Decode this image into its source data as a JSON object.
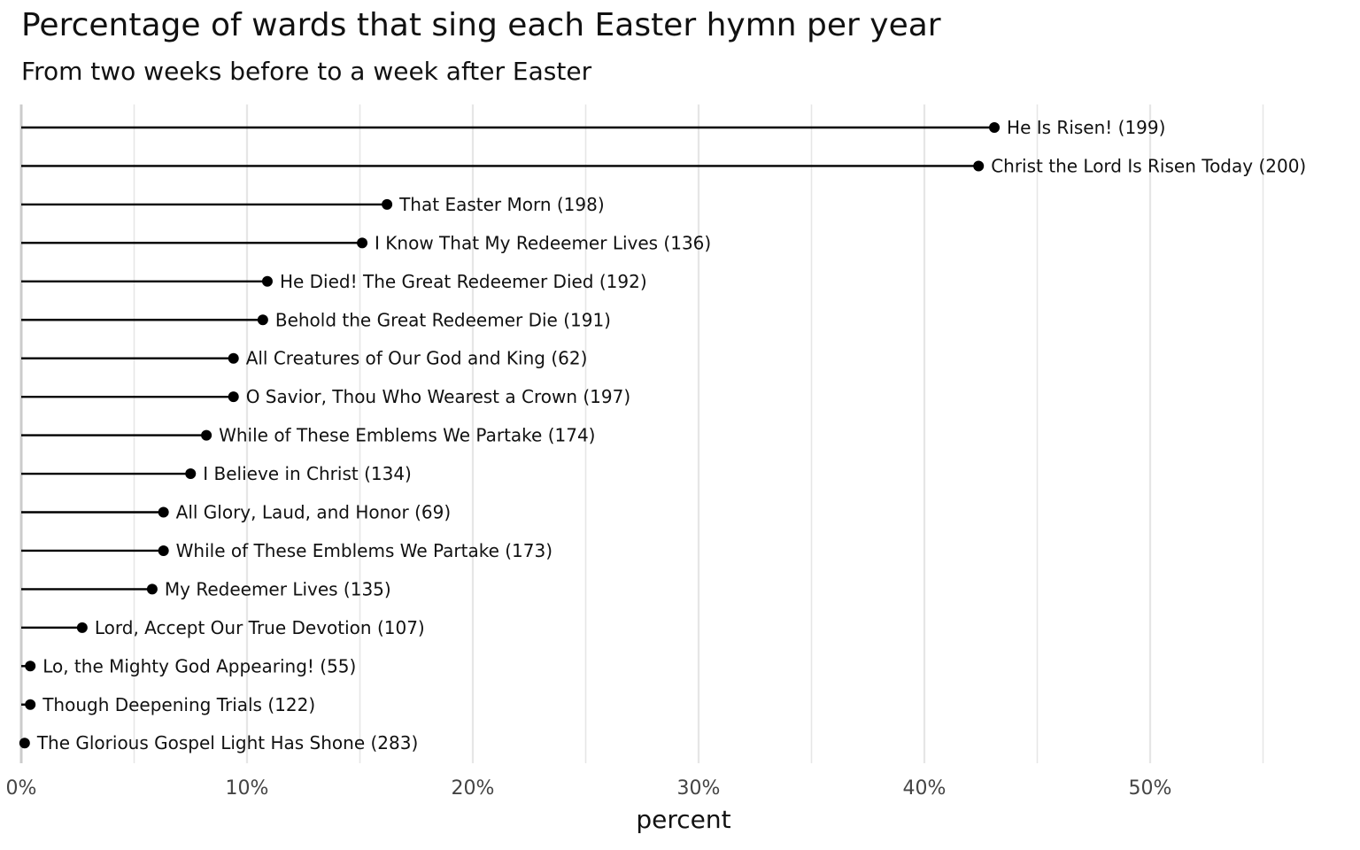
{
  "chart_data": {
    "type": "lollipop",
    "title": "Percentage of wards that sing each Easter hymn per year",
    "subtitle": "From two weeks before to a week after Easter",
    "xlabel": "percent",
    "ylabel": "",
    "xlim": [
      0,
      57
    ],
    "x_ticks": [
      {
        "value": 0,
        "label": "0%"
      },
      {
        "value": 10,
        "label": "10%"
      },
      {
        "value": 20,
        "label": "20%"
      },
      {
        "value": 30,
        "label": "30%"
      },
      {
        "value": 40,
        "label": "40%"
      },
      {
        "value": 50,
        "label": "50%"
      }
    ],
    "grid": true,
    "color": "#000000",
    "grid_color": "#e6e6e6",
    "categories": [
      "He Is Risen! (199)",
      "Christ the Lord Is Risen Today (200)",
      "That Easter Morn (198)",
      "I Know That My Redeemer Lives (136)",
      "He Died! The Great Redeemer Died (192)",
      "Behold the Great Redeemer Die (191)",
      "All Creatures of Our God and King (62)",
      "O Savior, Thou Who Wearest a Crown (197)",
      "While of These Emblems We Partake (174)",
      "I Believe in Christ (134)",
      "All Glory, Laud, and Honor (69)",
      "While of These Emblems We Partake (173)",
      "My Redeemer Lives (135)",
      "Lord, Accept Our True Devotion (107)",
      "Lo, the Mighty God Appearing! (55)",
      "Though Deepening Trials (122)",
      "The Glorious Gospel Light Has Shone (283)"
    ],
    "values": [
      43.1,
      42.4,
      16.2,
      15.1,
      10.9,
      10.7,
      9.4,
      9.4,
      8.2,
      7.5,
      6.3,
      6.3,
      5.8,
      2.7,
      0.4,
      0.4,
      0.15
    ]
  }
}
